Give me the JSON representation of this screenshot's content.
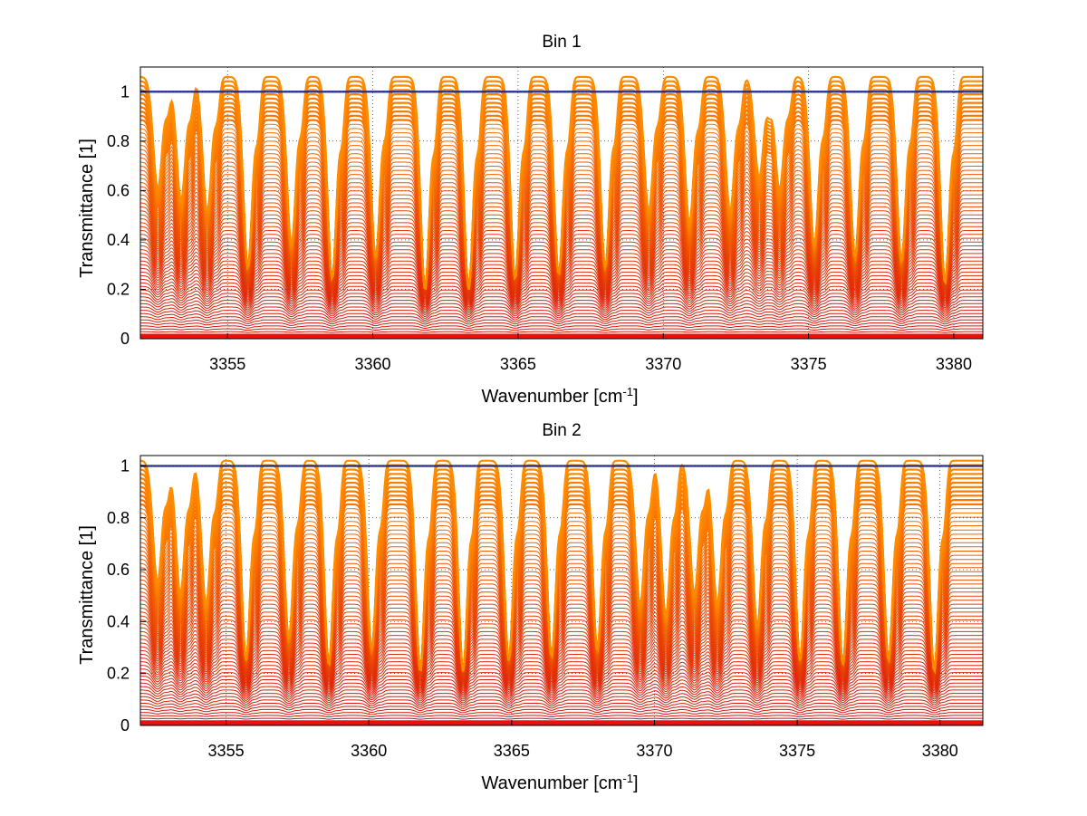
{
  "figure": {
    "background": "#ffffff",
    "axis_color": "#000000",
    "grid_color": "#000000"
  },
  "chart_data": [
    {
      "type": "line",
      "title": "Bin 1",
      "xlabel_base": "Wavenumber [cm",
      "xlabel_sup": "-1",
      "xlabel_close": "]",
      "ylabel": "Transmittance [1]",
      "xlim": [
        3352.0,
        3381.0
      ],
      "ylim": [
        0,
        1.1
      ],
      "xticks": [
        3355,
        3360,
        3365,
        3370,
        3375,
        3380
      ],
      "xtick_labels": [
        "3355",
        "3360",
        "3365",
        "3370",
        "3375",
        "3380"
      ],
      "yticks": [
        0,
        0.2,
        0.4,
        0.6,
        0.8,
        1
      ],
      "ytick_labels": [
        "0",
        "0.2",
        "0.4",
        "0.6",
        "0.8",
        "1"
      ],
      "grid": "dotted",
      "curve_count": 70,
      "top_value": 1.06,
      "line_centers": [
        3352.6,
        3353.4,
        3354.3,
        3355.7,
        3357.2,
        3358.6,
        3360.1,
        3361.8,
        3363.3,
        3364.9,
        3366.4,
        3368.0,
        3369.5,
        3370.9,
        3372.3,
        3373.3,
        3374.0,
        3375.2,
        3376.6,
        3378.2,
        3379.7
      ],
      "line_strengths": [
        0.5,
        0.55,
        0.6,
        0.85,
        0.75,
        0.9,
        0.8,
        0.95,
        0.95,
        0.9,
        0.88,
        0.85,
        0.6,
        0.65,
        0.6,
        0.45,
        0.5,
        0.75,
        0.8,
        0.82,
        0.92
      ]
    },
    {
      "type": "line",
      "title": "Bin 2",
      "xlabel_base": "Wavenumber [cm",
      "xlabel_sup": "-1",
      "xlabel_close": "]",
      "ylabel": "Transmittance [1]",
      "xlim": [
        3352.0,
        3381.5
      ],
      "ylim": [
        0,
        1.04
      ],
      "xticks": [
        3355,
        3360,
        3365,
        3370,
        3375,
        3380
      ],
      "xtick_labels": [
        "3355",
        "3360",
        "3365",
        "3370",
        "3375",
        "3380"
      ],
      "yticks": [
        0,
        0.2,
        0.4,
        0.6,
        0.8,
        1
      ],
      "ytick_labels": [
        "0",
        "0.2",
        "0.4",
        "0.6",
        "0.8",
        "1"
      ],
      "grid": "dotted",
      "curve_count": 70,
      "top_value": 1.02,
      "line_centers": [
        3352.6,
        3353.4,
        3354.3,
        3355.7,
        3357.2,
        3358.6,
        3360.1,
        3361.8,
        3363.3,
        3364.9,
        3366.4,
        3368.0,
        3369.5,
        3370.4,
        3371.4,
        3372.2,
        3373.6,
        3375.1,
        3376.6,
        3378.2,
        3379.8
      ],
      "line_strengths": [
        0.55,
        0.6,
        0.65,
        0.9,
        0.8,
        0.92,
        0.85,
        0.95,
        0.95,
        0.9,
        0.88,
        0.85,
        0.65,
        0.7,
        0.6,
        0.65,
        0.75,
        0.9,
        0.92,
        0.9,
        0.95
      ]
    }
  ]
}
